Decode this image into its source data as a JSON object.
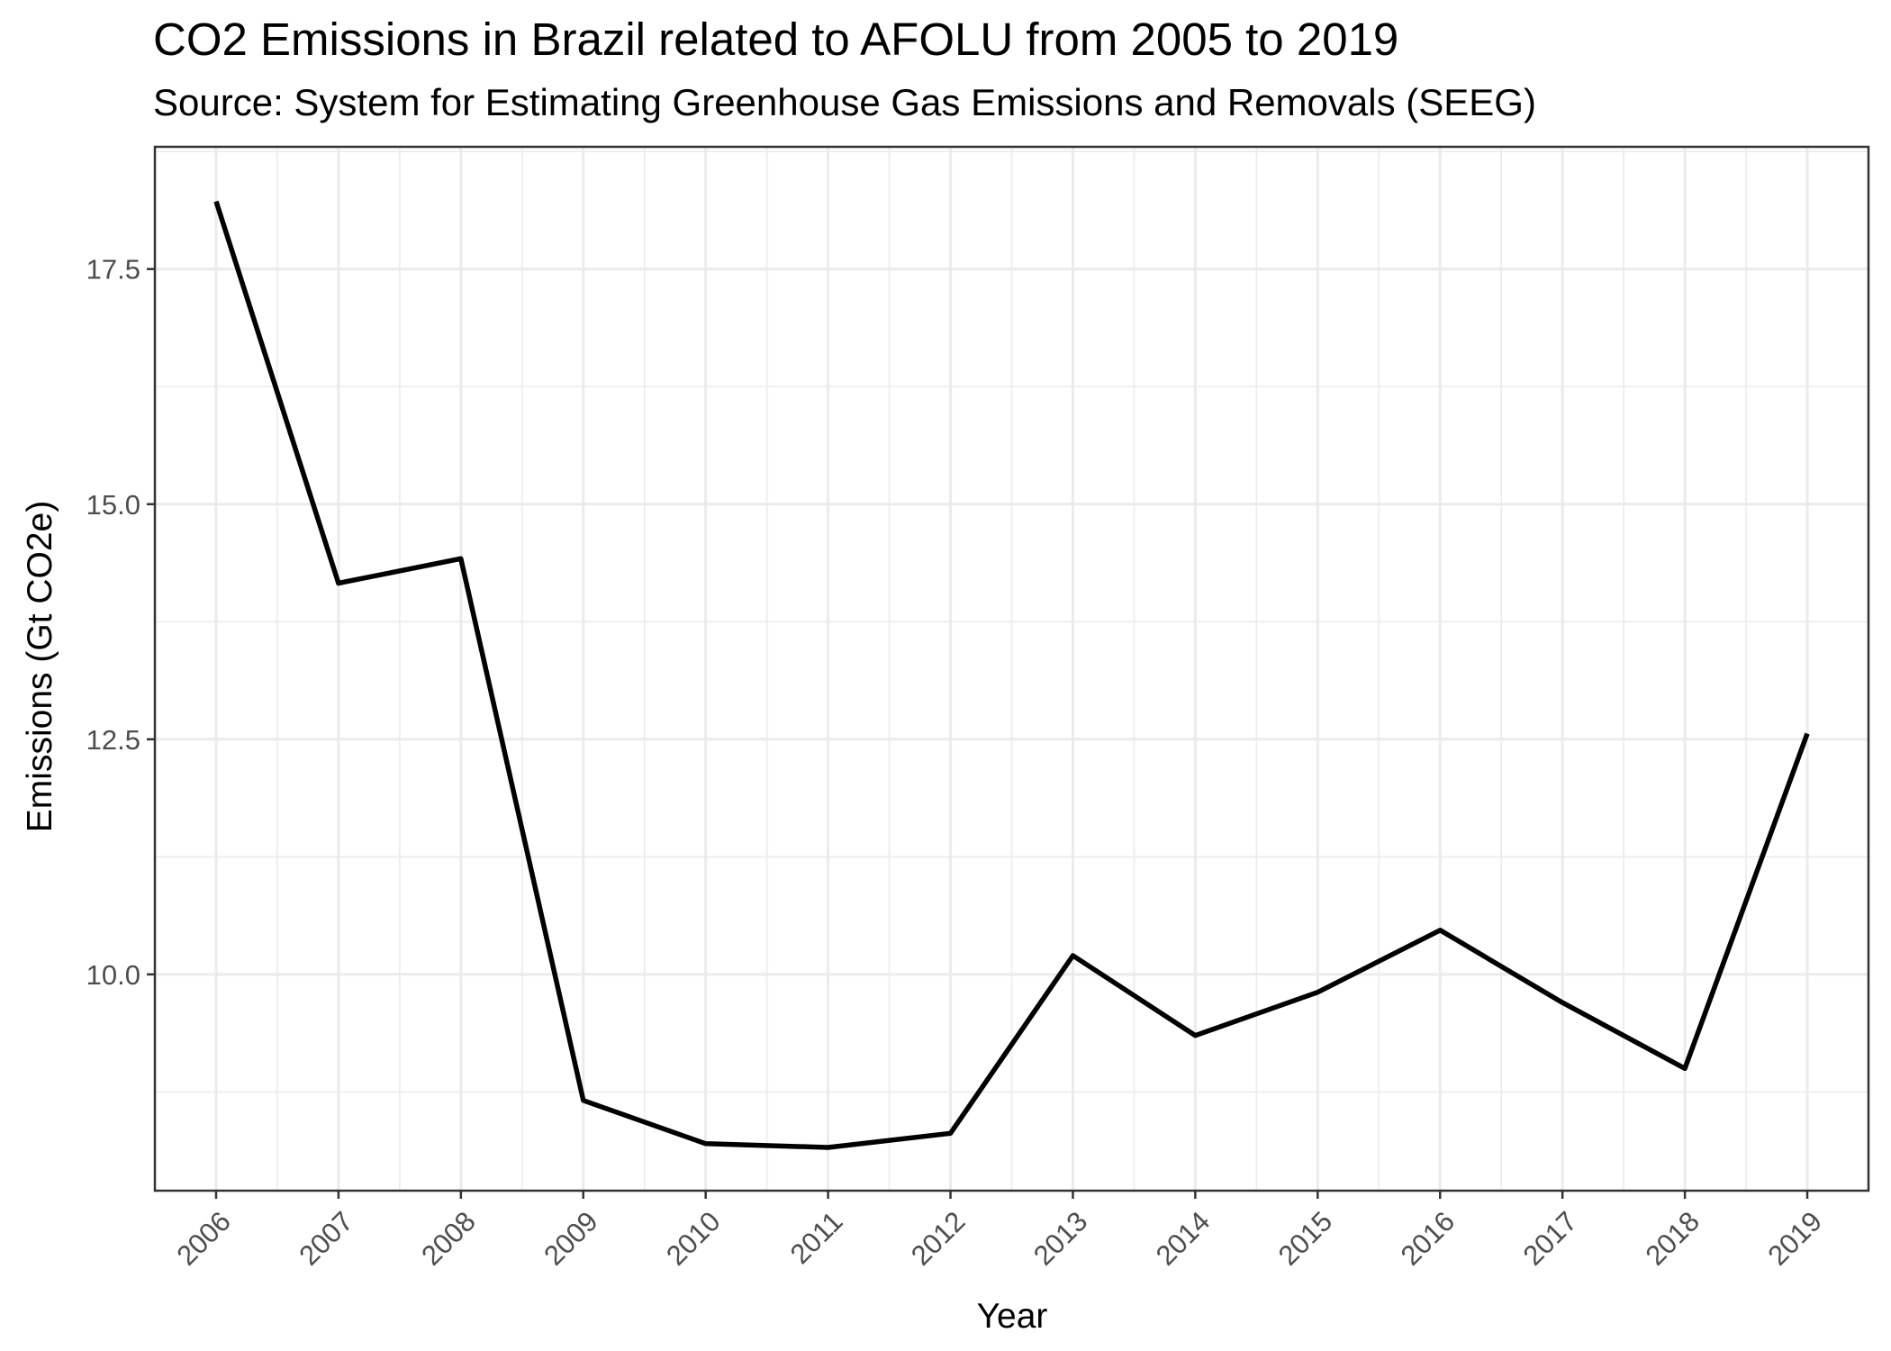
{
  "chart_data": {
    "type": "line",
    "title": "CO2 Emissions in Brazil related to AFOLU from 2005 to 2019",
    "subtitle": "Source: System for Estimating Greenhouse Gas Emissions and Removals (SEEG)",
    "xlabel": "Year",
    "ylabel": "Emissions (Gt CO2e)",
    "x": [
      2006,
      2007,
      2008,
      2009,
      2010,
      2011,
      2012,
      2013,
      2014,
      2015,
      2016,
      2017,
      2018,
      2019
    ],
    "series": [
      {
        "values": [
          18.22,
          14.16,
          14.42,
          8.66,
          8.2,
          8.16,
          8.31,
          10.2,
          9.35,
          9.81,
          10.47,
          9.7,
          9.0,
          12.56
        ]
      }
    ],
    "x_ticks": [
      "2006",
      "2007",
      "2008",
      "2009",
      "2010",
      "2011",
      "2012",
      "2013",
      "2014",
      "2015",
      "2016",
      "2017",
      "2018",
      "2019"
    ],
    "y_ticks": [
      "10.0",
      "12.5",
      "15.0",
      "17.5"
    ],
    "y_tick_values": [
      10.0,
      12.5,
      15.0,
      17.5
    ],
    "xlim": [
      2005.5,
      2019.5
    ],
    "ylim": [
      7.7,
      18.8
    ],
    "grid": true,
    "line_color": "#000000",
    "grid_color": "#ebebeb",
    "tick_label_color": "#4d4d4d"
  }
}
